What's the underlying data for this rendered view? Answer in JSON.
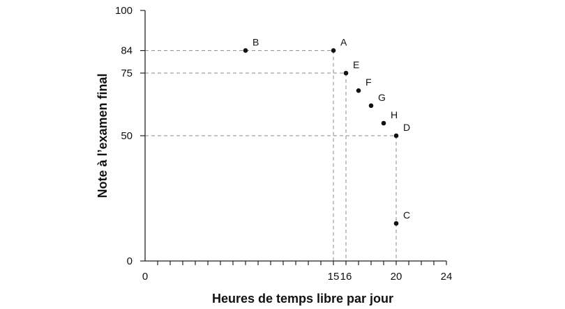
{
  "chart_data": {
    "type": "scatter",
    "title": "",
    "xlabel": "Heures de temps libre par jour",
    "ylabel": "Note à l’examen final",
    "xlim": [
      0,
      24
    ],
    "ylim": [
      0,
      100
    ],
    "grid": false,
    "x_ticks_labeled": [
      "0",
      "15",
      "16",
      "20",
      "24"
    ],
    "x_tick_values": [
      0,
      15,
      16,
      20,
      24
    ],
    "x_minor_ticks": [
      1,
      2,
      3,
      4,
      5,
      6,
      7,
      8,
      9,
      10,
      11,
      12,
      13,
      14,
      15,
      16,
      17,
      18,
      19,
      20,
      21,
      22,
      23,
      24
    ],
    "y_ticks_labeled": [
      "0",
      "50",
      "75",
      "84",
      "100"
    ],
    "y_tick_values": [
      0,
      50,
      75,
      84,
      100
    ],
    "points": [
      {
        "label": "A",
        "x": 15,
        "y": 84
      },
      {
        "label": "B",
        "x": 8,
        "y": 84
      },
      {
        "label": "C",
        "x": 20,
        "y": 15
      },
      {
        "label": "D",
        "x": 20,
        "y": 50
      },
      {
        "label": "E",
        "x": 16,
        "y": 75
      },
      {
        "label": "F",
        "x": 17,
        "y": 68
      },
      {
        "label": "G",
        "x": 18,
        "y": 62
      },
      {
        "label": "H",
        "x": 19,
        "y": 55
      }
    ],
    "reference_lines": [
      {
        "from": "A",
        "to_axes": true
      },
      {
        "from": "E",
        "to_axes": true
      },
      {
        "from": "D",
        "to_axes": true
      },
      {
        "from": "C",
        "to_x_axis": true
      }
    ],
    "colors": {
      "axis": "#222222",
      "guide": "#8a8a8a",
      "point": "#111111",
      "text": "#111111"
    }
  }
}
